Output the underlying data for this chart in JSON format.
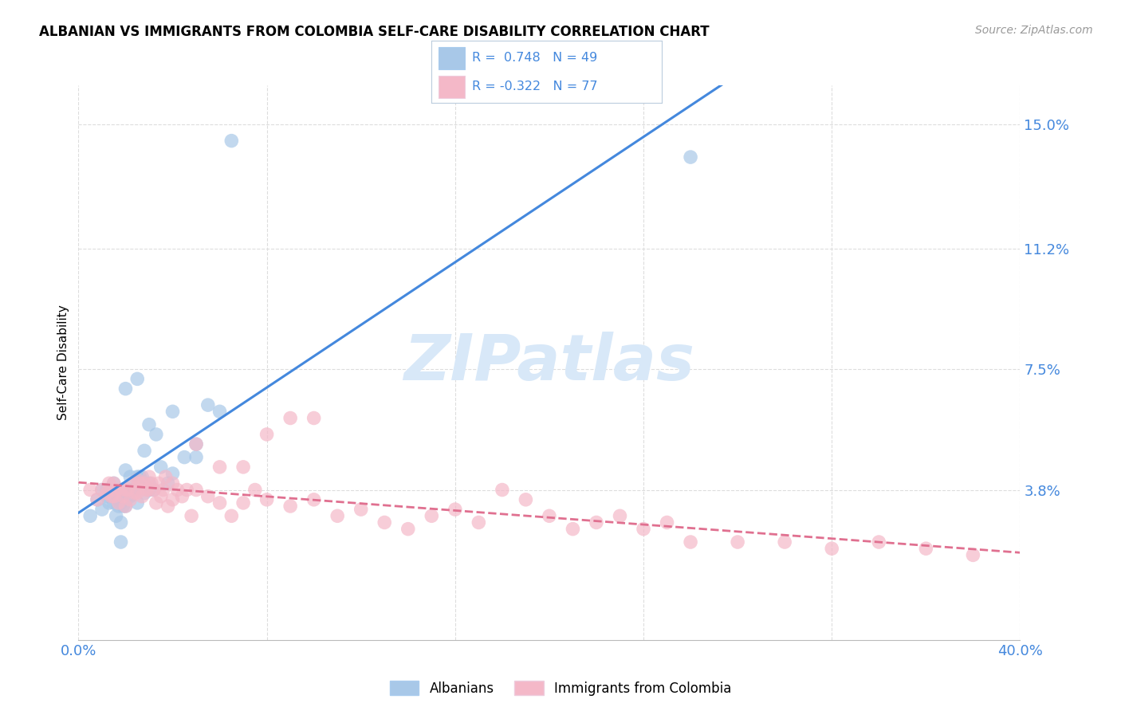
{
  "title": "ALBANIAN VS IMMIGRANTS FROM COLOMBIA SELF-CARE DISABILITY CORRELATION CHART",
  "source": "Source: ZipAtlas.com",
  "ylabel": "Self-Care Disability",
  "xmin": 0.0,
  "xmax": 0.4,
  "ymin": -0.008,
  "ymax": 0.162,
  "blue_R": 0.748,
  "blue_N": 49,
  "pink_R": -0.322,
  "pink_N": 77,
  "blue_color": "#A8C8E8",
  "pink_color": "#F4B8C8",
  "blue_line_color": "#4488DD",
  "pink_line_color": "#E07090",
  "legend_text_color": "#4488DD",
  "watermark_color": "#D8E8F8",
  "legend_label_blue": "Albanians",
  "legend_label_pink": "Immigrants from Colombia",
  "yticks": [
    0.038,
    0.075,
    0.112,
    0.15
  ],
  "ytick_labels": [
    "3.8%",
    "7.5%",
    "11.2%",
    "15.0%"
  ],
  "grid_color": "#DDDDDD",
  "blue_scatter_x": [
    0.005,
    0.008,
    0.01,
    0.01,
    0.012,
    0.012,
    0.013,
    0.014,
    0.015,
    0.015,
    0.016,
    0.016,
    0.017,
    0.018,
    0.018,
    0.019,
    0.02,
    0.02,
    0.02,
    0.021,
    0.022,
    0.022,
    0.023,
    0.024,
    0.025,
    0.025,
    0.026,
    0.027,
    0.028,
    0.028,
    0.03,
    0.03,
    0.032,
    0.033,
    0.035,
    0.038,
    0.04,
    0.04,
    0.045,
    0.05,
    0.055,
    0.06,
    0.065,
    0.02,
    0.025,
    0.03,
    0.05,
    0.26,
    0.018
  ],
  "blue_scatter_y": [
    0.03,
    0.035,
    0.032,
    0.038,
    0.036,
    0.038,
    0.034,
    0.036,
    0.034,
    0.04,
    0.03,
    0.036,
    0.033,
    0.028,
    0.034,
    0.033,
    0.033,
    0.035,
    0.044,
    0.038,
    0.036,
    0.042,
    0.038,
    0.038,
    0.034,
    0.042,
    0.042,
    0.042,
    0.037,
    0.05,
    0.038,
    0.04,
    0.038,
    0.055,
    0.045,
    0.04,
    0.043,
    0.062,
    0.048,
    0.048,
    0.064,
    0.062,
    0.145,
    0.069,
    0.072,
    0.058,
    0.052,
    0.14,
    0.022
  ],
  "pink_scatter_x": [
    0.005,
    0.008,
    0.01,
    0.012,
    0.013,
    0.014,
    0.015,
    0.016,
    0.017,
    0.018,
    0.019,
    0.02,
    0.021,
    0.022,
    0.023,
    0.024,
    0.025,
    0.026,
    0.027,
    0.028,
    0.029,
    0.03,
    0.031,
    0.032,
    0.033,
    0.034,
    0.035,
    0.036,
    0.037,
    0.038,
    0.04,
    0.042,
    0.044,
    0.046,
    0.048,
    0.05,
    0.055,
    0.06,
    0.065,
    0.07,
    0.075,
    0.08,
    0.09,
    0.1,
    0.11,
    0.12,
    0.13,
    0.14,
    0.15,
    0.16,
    0.17,
    0.18,
    0.19,
    0.2,
    0.21,
    0.22,
    0.23,
    0.24,
    0.25,
    0.26,
    0.015,
    0.02,
    0.025,
    0.03,
    0.04,
    0.05,
    0.06,
    0.07,
    0.08,
    0.09,
    0.1,
    0.28,
    0.3,
    0.32,
    0.34,
    0.36,
    0.38
  ],
  "pink_scatter_y": [
    0.038,
    0.035,
    0.038,
    0.037,
    0.04,
    0.036,
    0.036,
    0.038,
    0.034,
    0.038,
    0.036,
    0.033,
    0.038,
    0.035,
    0.04,
    0.037,
    0.037,
    0.04,
    0.036,
    0.04,
    0.038,
    0.038,
    0.04,
    0.038,
    0.034,
    0.04,
    0.036,
    0.038,
    0.042,
    0.033,
    0.035,
    0.038,
    0.036,
    0.038,
    0.03,
    0.038,
    0.036,
    0.034,
    0.03,
    0.034,
    0.038,
    0.035,
    0.033,
    0.035,
    0.03,
    0.032,
    0.028,
    0.026,
    0.03,
    0.032,
    0.028,
    0.038,
    0.035,
    0.03,
    0.026,
    0.028,
    0.03,
    0.026,
    0.028,
    0.022,
    0.04,
    0.038,
    0.041,
    0.042,
    0.04,
    0.052,
    0.045,
    0.045,
    0.055,
    0.06,
    0.06,
    0.022,
    0.022,
    0.02,
    0.022,
    0.02,
    0.018
  ]
}
